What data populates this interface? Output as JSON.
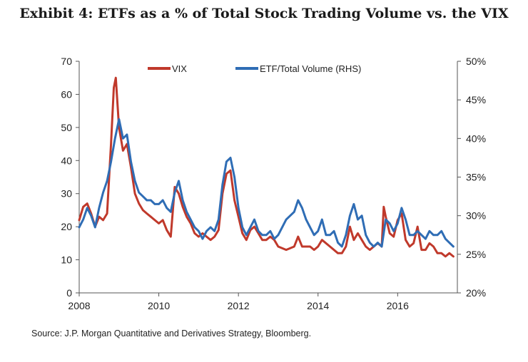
{
  "title": "Exhibit 4: ETFs as a % of Total Stock Trading Volume vs. the VIX",
  "source": "Source: J.P. Morgan Quantitative and Derivatives Strategy, Bloomberg.",
  "chart_data": {
    "type": "line",
    "xlim": [
      2008,
      2017.5
    ],
    "xticks": [
      "2008",
      "2010",
      "2012",
      "2014",
      "2016"
    ],
    "ylim_left": [
      0,
      70
    ],
    "yticks_left": [
      "0",
      "10",
      "20",
      "30",
      "40",
      "50",
      "60",
      "70"
    ],
    "ylim_right": [
      20,
      50
    ],
    "yticks_right": [
      "20%",
      "25%",
      "30%",
      "35%",
      "40%",
      "45%",
      "50%"
    ],
    "legend_position": "top",
    "grid": false,
    "series": [
      {
        "name": "VIX",
        "axis": "left",
        "color": "#c0392b",
        "points": [
          [
            2008.0,
            22
          ],
          [
            2008.1,
            26
          ],
          [
            2008.2,
            27
          ],
          [
            2008.3,
            24
          ],
          [
            2008.4,
            20
          ],
          [
            2008.5,
            23
          ],
          [
            2008.6,
            22
          ],
          [
            2008.7,
            24
          ],
          [
            2008.8,
            45
          ],
          [
            2008.87,
            62
          ],
          [
            2008.92,
            65
          ],
          [
            2009.0,
            50
          ],
          [
            2009.1,
            43
          ],
          [
            2009.2,
            45
          ],
          [
            2009.3,
            38
          ],
          [
            2009.4,
            30
          ],
          [
            2009.5,
            27
          ],
          [
            2009.6,
            25
          ],
          [
            2009.7,
            24
          ],
          [
            2009.8,
            23
          ],
          [
            2009.9,
            22
          ],
          [
            2010.0,
            21
          ],
          [
            2010.1,
            22
          ],
          [
            2010.2,
            19
          ],
          [
            2010.3,
            17
          ],
          [
            2010.4,
            32
          ],
          [
            2010.5,
            30
          ],
          [
            2010.6,
            26
          ],
          [
            2010.7,
            23
          ],
          [
            2010.8,
            21
          ],
          [
            2010.9,
            18
          ],
          [
            2011.0,
            17
          ],
          [
            2011.1,
            18
          ],
          [
            2011.2,
            17
          ],
          [
            2011.3,
            16
          ],
          [
            2011.4,
            17
          ],
          [
            2011.5,
            19
          ],
          [
            2011.6,
            30
          ],
          [
            2011.7,
            36
          ],
          [
            2011.8,
            37
          ],
          [
            2011.9,
            28
          ],
          [
            2012.0,
            23
          ],
          [
            2012.1,
            18
          ],
          [
            2012.2,
            16
          ],
          [
            2012.3,
            19
          ],
          [
            2012.4,
            20
          ],
          [
            2012.5,
            18
          ],
          [
            2012.6,
            16
          ],
          [
            2012.7,
            16
          ],
          [
            2012.8,
            17
          ],
          [
            2012.9,
            16
          ],
          [
            2013.0,
            14
          ],
          [
            2013.2,
            13
          ],
          [
            2013.4,
            14
          ],
          [
            2013.5,
            17
          ],
          [
            2013.6,
            14
          ],
          [
            2013.8,
            14
          ],
          [
            2013.9,
            13
          ],
          [
            2014.0,
            14
          ],
          [
            2014.1,
            16
          ],
          [
            2014.3,
            14
          ],
          [
            2014.5,
            12
          ],
          [
            2014.6,
            12
          ],
          [
            2014.7,
            14
          ],
          [
            2014.8,
            20
          ],
          [
            2014.9,
            16
          ],
          [
            2015.0,
            18
          ],
          [
            2015.1,
            16
          ],
          [
            2015.2,
            14
          ],
          [
            2015.3,
            13
          ],
          [
            2015.4,
            14
          ],
          [
            2015.5,
            15
          ],
          [
            2015.6,
            14
          ],
          [
            2015.65,
            26
          ],
          [
            2015.7,
            23
          ],
          [
            2015.8,
            18
          ],
          [
            2015.9,
            17
          ],
          [
            2016.0,
            22
          ],
          [
            2016.1,
            24
          ],
          [
            2016.2,
            16
          ],
          [
            2016.3,
            14
          ],
          [
            2016.4,
            15
          ],
          [
            2016.5,
            20
          ],
          [
            2016.6,
            13
          ],
          [
            2016.7,
            13
          ],
          [
            2016.8,
            15
          ],
          [
            2016.9,
            14
          ],
          [
            2017.0,
            12
          ],
          [
            2017.1,
            12
          ],
          [
            2017.2,
            11
          ],
          [
            2017.3,
            12
          ],
          [
            2017.4,
            11
          ]
        ]
      },
      {
        "name": "ETF/Total Volume (RHS)",
        "axis": "right",
        "color": "#2f6db5",
        "points": [
          [
            2008.0,
            28.5
          ],
          [
            2008.1,
            29.5
          ],
          [
            2008.2,
            31
          ],
          [
            2008.3,
            30
          ],
          [
            2008.4,
            28.5
          ],
          [
            2008.5,
            31
          ],
          [
            2008.6,
            33
          ],
          [
            2008.7,
            34.5
          ],
          [
            2008.8,
            37
          ],
          [
            2008.9,
            40
          ],
          [
            2009.0,
            42.5
          ],
          [
            2009.1,
            40
          ],
          [
            2009.2,
            40.5
          ],
          [
            2009.3,
            37
          ],
          [
            2009.4,
            34.5
          ],
          [
            2009.5,
            33
          ],
          [
            2009.6,
            32.5
          ],
          [
            2009.7,
            32
          ],
          [
            2009.8,
            32
          ],
          [
            2009.9,
            31.5
          ],
          [
            2010.0,
            31.5
          ],
          [
            2010.1,
            32
          ],
          [
            2010.2,
            31
          ],
          [
            2010.3,
            30.5
          ],
          [
            2010.4,
            33
          ],
          [
            2010.5,
            34.5
          ],
          [
            2010.6,
            32
          ],
          [
            2010.7,
            30.5
          ],
          [
            2010.8,
            29.5
          ],
          [
            2010.9,
            28.5
          ],
          [
            2011.0,
            28
          ],
          [
            2011.1,
            27
          ],
          [
            2011.2,
            28
          ],
          [
            2011.3,
            28.5
          ],
          [
            2011.4,
            28
          ],
          [
            2011.5,
            29.5
          ],
          [
            2011.6,
            34
          ],
          [
            2011.7,
            37
          ],
          [
            2011.8,
            37.5
          ],
          [
            2011.9,
            35
          ],
          [
            2012.0,
            31
          ],
          [
            2012.1,
            28.5
          ],
          [
            2012.2,
            27.5
          ],
          [
            2012.3,
            28.5
          ],
          [
            2012.4,
            29.5
          ],
          [
            2012.5,
            28
          ],
          [
            2012.6,
            27.5
          ],
          [
            2012.7,
            27.5
          ],
          [
            2012.8,
            28
          ],
          [
            2012.9,
            27
          ],
          [
            2013.0,
            27.5
          ],
          [
            2013.1,
            28.5
          ],
          [
            2013.2,
            29.5
          ],
          [
            2013.3,
            30
          ],
          [
            2013.4,
            30.5
          ],
          [
            2013.5,
            32
          ],
          [
            2013.6,
            31
          ],
          [
            2013.7,
            29.5
          ],
          [
            2013.8,
            28.5
          ],
          [
            2013.9,
            27.5
          ],
          [
            2014.0,
            28
          ],
          [
            2014.1,
            29.5
          ],
          [
            2014.2,
            27.5
          ],
          [
            2014.3,
            27.5
          ],
          [
            2014.4,
            28
          ],
          [
            2014.5,
            26.5
          ],
          [
            2014.6,
            26
          ],
          [
            2014.7,
            27.5
          ],
          [
            2014.8,
            30
          ],
          [
            2014.9,
            31.5
          ],
          [
            2015.0,
            29.5
          ],
          [
            2015.1,
            30
          ],
          [
            2015.2,
            27.5
          ],
          [
            2015.3,
            26.5
          ],
          [
            2015.4,
            26
          ],
          [
            2015.5,
            26.5
          ],
          [
            2015.6,
            26
          ],
          [
            2015.7,
            29.5
          ],
          [
            2015.8,
            29
          ],
          [
            2015.9,
            28
          ],
          [
            2016.0,
            29
          ],
          [
            2016.1,
            31
          ],
          [
            2016.2,
            29.5
          ],
          [
            2016.3,
            27.5
          ],
          [
            2016.4,
            27.5
          ],
          [
            2016.5,
            28
          ],
          [
            2016.6,
            27.5
          ],
          [
            2016.7,
            27
          ],
          [
            2016.8,
            28
          ],
          [
            2016.9,
            27.5
          ],
          [
            2017.0,
            27.5
          ],
          [
            2017.1,
            28
          ],
          [
            2017.2,
            27
          ],
          [
            2017.3,
            26.5
          ],
          [
            2017.4,
            26
          ]
        ]
      }
    ]
  }
}
